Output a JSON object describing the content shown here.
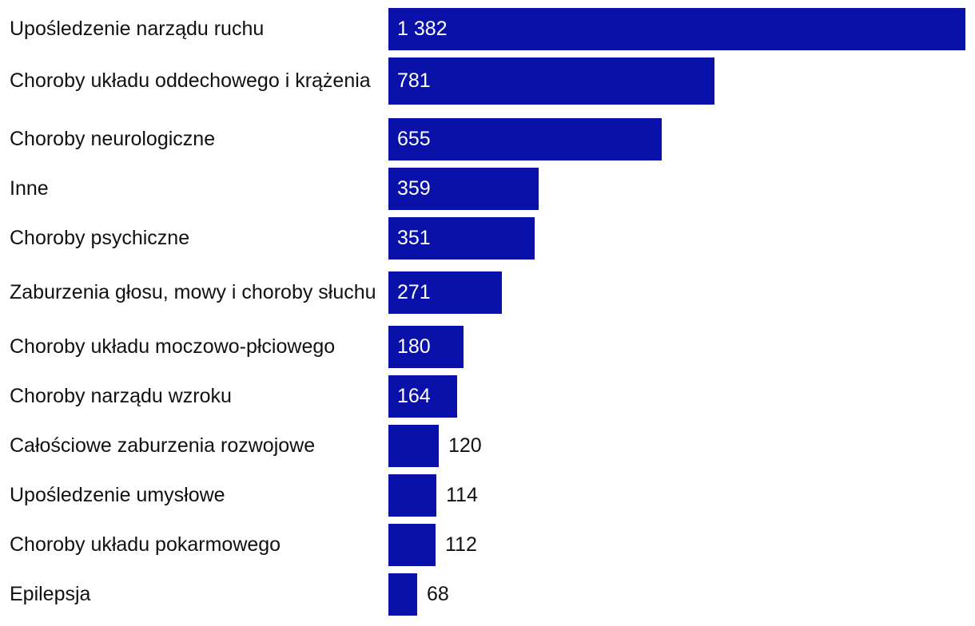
{
  "colors": {
    "bar": "#0a11a8",
    "label_inside": "#ffffff",
    "label_outside": "#111111"
  },
  "chart_data": {
    "type": "bar",
    "orientation": "horizontal",
    "title": "",
    "xlabel": "",
    "ylabel": "",
    "xlim": [
      0,
      1382
    ],
    "grid": false,
    "legend": "none",
    "categories": [
      "Upośledzenie narządu ruchu",
      "Choroby układu oddechowego i krążenia",
      "Choroby neurologiczne",
      "Inne",
      "Choroby psychiczne",
      "Zaburzenia głosu, mowy i choroby słuchu",
      "Choroby układu moczowo-płciowego",
      "Choroby narządu wzroku",
      "Całościowe zaburzenia rozwojowe",
      "Upośledzenie umysłowe",
      "Choroby układu pokarmowego",
      "Epilepsja"
    ],
    "values": [
      1382,
      781,
      655,
      359,
      351,
      271,
      180,
      164,
      120,
      114,
      112,
      68
    ],
    "value_labels": [
      "1 382",
      "781",
      "655",
      "359",
      "351",
      "271",
      "180",
      "164",
      "120",
      "114",
      "112",
      "68"
    ]
  }
}
